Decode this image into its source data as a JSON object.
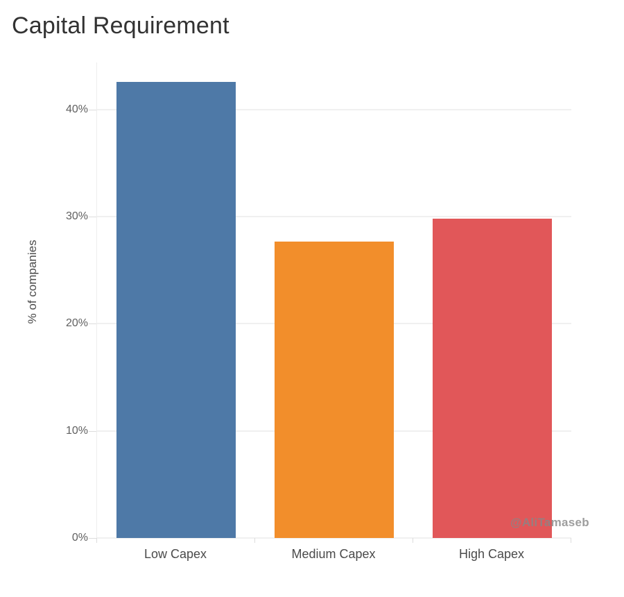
{
  "watermark": "@AliTamaseb",
  "colors": {
    "background": "#ffffff",
    "title_text": "#323232",
    "axis_text": "#4a4a4a",
    "tick_text": "#606060",
    "gridline": "#f0f0f0",
    "axis_line": "#ededed",
    "tick_mark": "#dcdcdc",
    "watermark_text": "#888888"
  },
  "chart_data": {
    "type": "bar",
    "title": "Capital Requirement",
    "categories": [
      "Low Capex",
      "Medium Capex",
      "High Capex"
    ],
    "values": [
      42.6,
      27.7,
      29.8
    ],
    "bar_colors": [
      "#4e79a7",
      "#f28e2b",
      "#e15759"
    ],
    "xlabel": "",
    "ylabel": "% of companies",
    "ylim": [
      0,
      44.4
    ],
    "yticks": [
      0,
      10,
      20,
      30,
      40
    ],
    "ytick_labels": [
      "0%",
      "10%",
      "20%",
      "30%",
      "40%"
    ],
    "grid": true,
    "legend": false
  }
}
